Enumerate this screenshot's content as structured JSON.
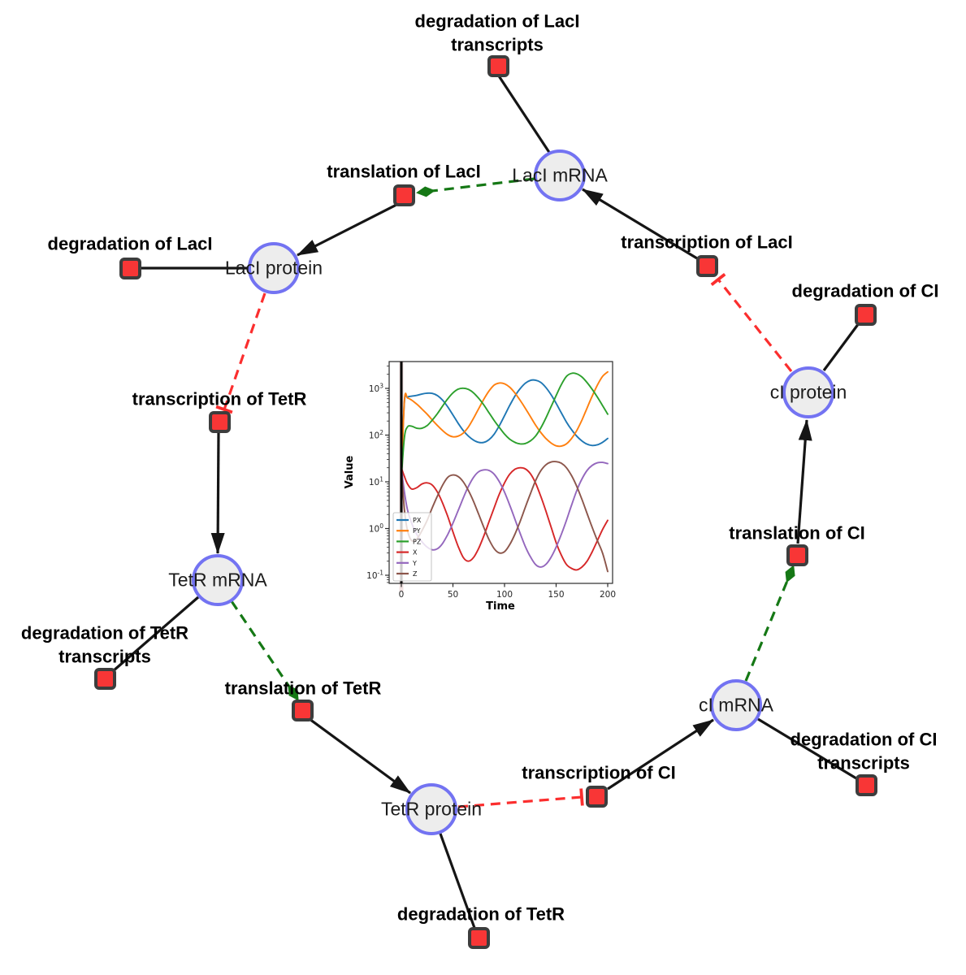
{
  "diagram": {
    "species": [
      {
        "id": "laci-mrna",
        "label": "LacI mRNA"
      },
      {
        "id": "laci-protein",
        "label": "LacI protein"
      },
      {
        "id": "ci-protein",
        "label": "cI protein"
      },
      {
        "id": "tetr-mrna",
        "label": "TetR mRNA"
      },
      {
        "id": "tetr-protein",
        "label": "TetR protein"
      },
      {
        "id": "ci-mrna",
        "label": "cI mRNA"
      }
    ],
    "reactions": [
      {
        "id": "deg-laci-transcripts",
        "label": "degradation of LacI\ntranscripts"
      },
      {
        "id": "translation-laci",
        "label": "translation of LacI"
      },
      {
        "id": "transcription-laci",
        "label": "transcription of LacI"
      },
      {
        "id": "deg-laci",
        "label": "degradation of LacI"
      },
      {
        "id": "deg-ci",
        "label": "degradation of CI"
      },
      {
        "id": "transcription-tetr",
        "label": "transcription of TetR"
      },
      {
        "id": "translation-ci",
        "label": "translation of CI"
      },
      {
        "id": "deg-tetr-transcripts",
        "label": "degradation of TetR\ntranscripts"
      },
      {
        "id": "translation-tetr",
        "label": "translation of TetR"
      },
      {
        "id": "transcription-ci",
        "label": "transcription of CI"
      },
      {
        "id": "deg-ci-transcripts",
        "label": "degradation of CI\ntranscripts"
      },
      {
        "id": "deg-tetr",
        "label": "degradation of TetR"
      }
    ],
    "edges": [
      {
        "from": "LacI mRNA",
        "to": "degradation of LacI transcripts",
        "type": "consumption"
      },
      {
        "from": "LacI mRNA",
        "to": "translation of LacI",
        "type": "modifier"
      },
      {
        "from": "translation of LacI",
        "to": "LacI protein",
        "type": "production"
      },
      {
        "from": "transcription of LacI",
        "to": "LacI mRNA",
        "type": "production"
      },
      {
        "from": "cI protein",
        "to": "transcription of LacI",
        "type": "inhibition"
      },
      {
        "from": "LacI protein",
        "to": "transcription of TetR",
        "type": "inhibition"
      },
      {
        "from": "LacI protein",
        "to": "degradation of LacI",
        "type": "consumption"
      },
      {
        "from": "cI protein",
        "to": "degradation of CI",
        "type": "consumption"
      },
      {
        "from": "translation of CI",
        "to": "cI protein",
        "type": "production"
      },
      {
        "from": "cI mRNA",
        "to": "translation of CI",
        "type": "modifier"
      },
      {
        "from": "transcription of CI",
        "to": "cI mRNA",
        "type": "production"
      },
      {
        "from": "cI mRNA",
        "to": "degradation of CI transcripts",
        "type": "consumption"
      },
      {
        "from": "TetR protein",
        "to": "transcription of CI",
        "type": "inhibition"
      },
      {
        "from": "translation of TetR",
        "to": "TetR protein",
        "type": "production"
      },
      {
        "from": "TetR mRNA",
        "to": "translation of TetR",
        "type": "modifier"
      },
      {
        "from": "transcription of TetR",
        "to": "TetR mRNA",
        "type": "production"
      },
      {
        "from": "TetR mRNA",
        "to": "degradation of TetR transcripts",
        "type": "consumption"
      },
      {
        "from": "TetR protein",
        "to": "degradation of TetR",
        "type": "consumption"
      }
    ],
    "colors": {
      "species_fill": "#ededed",
      "species_border": "#7373f2",
      "reaction_fill": "#f83636",
      "reaction_border": "#3d3d3d",
      "production_edge": "#151515",
      "modifier_edge": "#157815",
      "inhibition_edge": "#fb2e2e"
    }
  },
  "chart_data": {
    "type": "line",
    "title": "",
    "xlabel": "Time",
    "ylabel": "Value",
    "yscale": "log",
    "x_ticks": [
      0,
      50,
      100,
      150,
      200
    ],
    "y_tick_exponents": [
      -1,
      0,
      1,
      2,
      3
    ],
    "xlim": [
      -12,
      205
    ],
    "ylog10_lim": [
      -1.17,
      3.57
    ],
    "legend_position": "lower left",
    "event_line_x": 0,
    "x": [
      0,
      3,
      6,
      10,
      15,
      20,
      25,
      30,
      35,
      40,
      45,
      50,
      55,
      60,
      65,
      70,
      75,
      80,
      85,
      90,
      95,
      100,
      105,
      110,
      115,
      120,
      125,
      130,
      135,
      140,
      145,
      150,
      155,
      160,
      165,
      170,
      175,
      180,
      185,
      190,
      195,
      200
    ],
    "series": [
      {
        "name": "PX",
        "color": "#1f77b4",
        "values": [
          15,
          520,
          650,
          680,
          710,
          760,
          790,
          780,
          700,
          560,
          400,
          270,
          180,
          125,
          95,
          78,
          70,
          70,
          80,
          105,
          160,
          260,
          430,
          680,
          980,
          1280,
          1480,
          1500,
          1350,
          1050,
          740,
          480,
          300,
          190,
          130,
          95,
          75,
          64,
          60,
          62,
          70,
          85
        ]
      },
      {
        "name": "PY",
        "color": "#ff7f0e",
        "values": [
          10,
          560,
          620,
          560,
          460,
          360,
          280,
          210,
          160,
          125,
          102,
          92,
          95,
          110,
          150,
          230,
          370,
          590,
          880,
          1180,
          1300,
          1250,
          1060,
          800,
          560,
          380,
          250,
          165,
          115,
          85,
          68,
          59,
          58,
          65,
          85,
          125,
          210,
          380,
          690,
          1180,
          1800,
          2250
        ]
      },
      {
        "name": "PZ",
        "color": "#2ca02c",
        "values": [
          12,
          90,
          150,
          155,
          140,
          140,
          160,
          210,
          290,
          420,
          600,
          800,
          960,
          1010,
          950,
          800,
          610,
          440,
          300,
          205,
          145,
          105,
          82,
          70,
          65,
          66,
          75,
          95,
          140,
          230,
          400,
          700,
          1200,
          1800,
          2100,
          2050,
          1750,
          1330,
          950,
          650,
          430,
          280
        ]
      },
      {
        "name": "X",
        "color": "#d62728",
        "values": [
          20,
          13,
          9,
          7,
          7.5,
          9,
          9.5,
          8.5,
          6,
          3.5,
          1.8,
          0.85,
          0.42,
          0.24,
          0.2,
          0.24,
          0.38,
          0.7,
          1.4,
          2.8,
          5.5,
          9.5,
          14.5,
          18.5,
          20,
          19,
          15,
          9.5,
          5,
          2.4,
          1.1,
          0.5,
          0.27,
          0.17,
          0.14,
          0.13,
          0.15,
          0.2,
          0.32,
          0.55,
          0.95,
          1.5
        ]
      },
      {
        "name": "Y",
        "color": "#9467bd",
        "values": [
          20,
          6,
          2.5,
          1.3,
          0.75,
          0.52,
          0.4,
          0.35,
          0.37,
          0.48,
          0.75,
          1.3,
          2.4,
          4.5,
          8,
          12.5,
          16.5,
          18,
          17.5,
          14.5,
          10,
          6,
          3.2,
          1.6,
          0.8,
          0.42,
          0.25,
          0.17,
          0.15,
          0.17,
          0.24,
          0.4,
          0.75,
          1.5,
          3.2,
          6.5,
          11.5,
          17.5,
          22.5,
          25.5,
          26,
          24.5
        ]
      },
      {
        "name": "Z",
        "color": "#8c564b",
        "values": [
          20,
          2.5,
          0.9,
          0.55,
          0.6,
          0.9,
          1.5,
          2.8,
          5,
          8.5,
          12.5,
          14,
          13,
          10,
          6.5,
          3.8,
          2,
          1.05,
          0.58,
          0.37,
          0.3,
          0.32,
          0.45,
          0.75,
          1.4,
          2.8,
          5.5,
          10.5,
          17,
          23,
          26.5,
          27,
          25,
          20,
          13.5,
          8,
          4.2,
          2.1,
          1.05,
          0.55,
          0.3,
          0.12
        ]
      }
    ]
  }
}
